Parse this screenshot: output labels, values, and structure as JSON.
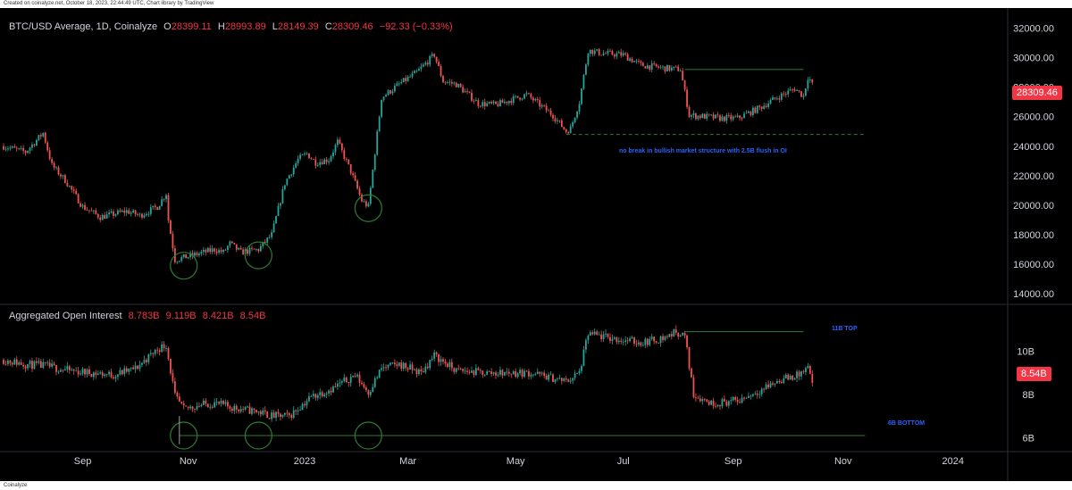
{
  "header": {
    "caption": "Created on coinalyze.net, October 18, 2023, 22:44:49 UTC, Chart library by TradingView"
  },
  "footer": {
    "brand": "Coinalyze"
  },
  "colors": {
    "up": "#26a69a",
    "down": "#ef5350",
    "accent_red": "#f23645",
    "annotation_blue": "#2962ff",
    "annotation_green": "#1b5e20",
    "circle_green": "#2e7d32"
  },
  "legend_price": {
    "symbol": "BTC/USD Average, 1D, Coinalyze",
    "open_label": "O",
    "open": "28399.11",
    "high_label": "H",
    "high": "28993.89",
    "low_label": "L",
    "low": "28149.39",
    "close_label": "C",
    "close": "28309.46",
    "change": "−92.33 (−0.33%)"
  },
  "legend_oi": {
    "title": "Aggregated Open Interest",
    "v1": "8.783B",
    "v2": "9.119B",
    "v3": "8.421B",
    "v4": "8.54B"
  },
  "price_tag": "28309.46",
  "oi_tag": "8.54B",
  "annotations": {
    "structure_note": "no break in bullish market structure with 2.5B flush in OI",
    "top_note": "11B TOP",
    "bottom_note": "6B BOTTOM"
  },
  "chart_data": [
    {
      "type": "candlestick",
      "title": "BTC/USD Average, 1D, Coinalyze",
      "y_axis_ticks": [
        "32000.00",
        "30000.00",
        "28000.00",
        "26000.00",
        "24000.00",
        "22000.00",
        "20000.00",
        "18000.00",
        "16000.00",
        "14000.00"
      ],
      "ylim": [
        13400,
        32700
      ],
      "x_ticks": [
        "Sep",
        "Nov",
        "2023",
        "Mar",
        "May",
        "Jul",
        "Sep",
        "Nov",
        "2024"
      ],
      "last_close": 28309.46,
      "anchors": [
        [
          0,
          24000
        ],
        [
          10,
          23600
        ],
        [
          18,
          24900
        ],
        [
          22,
          22700
        ],
        [
          28,
          21700
        ],
        [
          36,
          19900
        ],
        [
          44,
          19200
        ],
        [
          56,
          19600
        ],
        [
          62,
          19300
        ],
        [
          70,
          19900
        ],
        [
          74,
          20800
        ],
        [
          75,
          19000
        ],
        [
          78,
          16300
        ],
        [
          86,
          16600
        ],
        [
          96,
          17000
        ],
        [
          100,
          16800
        ],
        [
          103,
          17400
        ],
        [
          108,
          16800
        ],
        [
          116,
          17000
        ],
        [
          122,
          18000
        ],
        [
          128,
          21500
        ],
        [
          134,
          23100
        ],
        [
          138,
          23500
        ],
        [
          142,
          22900
        ],
        [
          148,
          23100
        ],
        [
          152,
          24300
        ],
        [
          158,
          22300
        ],
        [
          163,
          20300
        ],
        [
          166,
          19900
        ],
        [
          172,
          27300
        ],
        [
          180,
          28200
        ],
        [
          188,
          29000
        ],
        [
          196,
          30200
        ],
        [
          200,
          28400
        ],
        [
          206,
          28200
        ],
        [
          216,
          26900
        ],
        [
          224,
          26800
        ],
        [
          238,
          27500
        ],
        [
          250,
          26100
        ],
        [
          256,
          25000
        ],
        [
          258,
          25200
        ],
        [
          262,
          27000
        ],
        [
          266,
          30500
        ],
        [
          272,
          30300
        ],
        [
          282,
          30200
        ],
        [
          290,
          29500
        ],
        [
          300,
          29300
        ],
        [
          308,
          29200
        ],
        [
          312,
          26100
        ],
        [
          320,
          26000
        ],
        [
          326,
          25900
        ],
        [
          334,
          25900
        ],
        [
          344,
          26600
        ],
        [
          352,
          27300
        ],
        [
          360,
          27900
        ],
        [
          364,
          27400
        ],
        [
          366,
          28700
        ],
        [
          368,
          28309
        ]
      ],
      "horizontal_levels": [
        {
          "y": 29200,
          "from": 310,
          "to": 364
        },
        {
          "y": 24800,
          "from": 256,
          "to": 392
        }
      ],
      "circles": [
        {
          "day": 82,
          "y": 15900
        },
        {
          "day": 116,
          "y": 16600
        },
        {
          "day": 166,
          "y": 19800
        }
      ]
    },
    {
      "type": "candlestick",
      "title": "Aggregated Open Interest",
      "y_axis_ticks": [
        "10B",
        "8B",
        "6B"
      ],
      "ylim": [
        5.4,
        12.0
      ],
      "last_close": 8.54,
      "anchors": [
        [
          0,
          9.6
        ],
        [
          10,
          9.4
        ],
        [
          20,
          9.3
        ],
        [
          30,
          9.1
        ],
        [
          40,
          9.0
        ],
        [
          50,
          8.9
        ],
        [
          60,
          9.2
        ],
        [
          70,
          10.1
        ],
        [
          74,
          10.3
        ],
        [
          78,
          7.9
        ],
        [
          82,
          7.3
        ],
        [
          88,
          7.5
        ],
        [
          96,
          7.6
        ],
        [
          104,
          7.4
        ],
        [
          110,
          7.3
        ],
        [
          116,
          7.2
        ],
        [
          122,
          7.0
        ],
        [
          130,
          7.0
        ],
        [
          140,
          7.9
        ],
        [
          150,
          8.3
        ],
        [
          160,
          8.9
        ],
        [
          166,
          8.1
        ],
        [
          172,
          9.2
        ],
        [
          180,
          9.4
        ],
        [
          190,
          9.0
        ],
        [
          196,
          9.8
        ],
        [
          206,
          9.1
        ],
        [
          220,
          9.0
        ],
        [
          240,
          9.0
        ],
        [
          256,
          8.6
        ],
        [
          262,
          9.0
        ],
        [
          266,
          10.8
        ],
        [
          276,
          10.6
        ],
        [
          290,
          10.4
        ],
        [
          300,
          10.6
        ],
        [
          306,
          10.9
        ],
        [
          310,
          10.7
        ],
        [
          314,
          8.0
        ],
        [
          322,
          7.6
        ],
        [
          334,
          7.7
        ],
        [
          344,
          8.2
        ],
        [
          354,
          8.7
        ],
        [
          362,
          8.9
        ],
        [
          366,
          9.2
        ],
        [
          368,
          8.54
        ]
      ],
      "horizontal_levels": [
        {
          "y": 10.9,
          "from": 310,
          "to": 364
        },
        {
          "y": 6.1,
          "from": 80,
          "to": 392
        }
      ],
      "circles": [
        {
          "day": 82,
          "y": 6.1
        },
        {
          "day": 116,
          "y": 6.1
        },
        {
          "day": 166,
          "y": 6.1
        }
      ]
    }
  ]
}
